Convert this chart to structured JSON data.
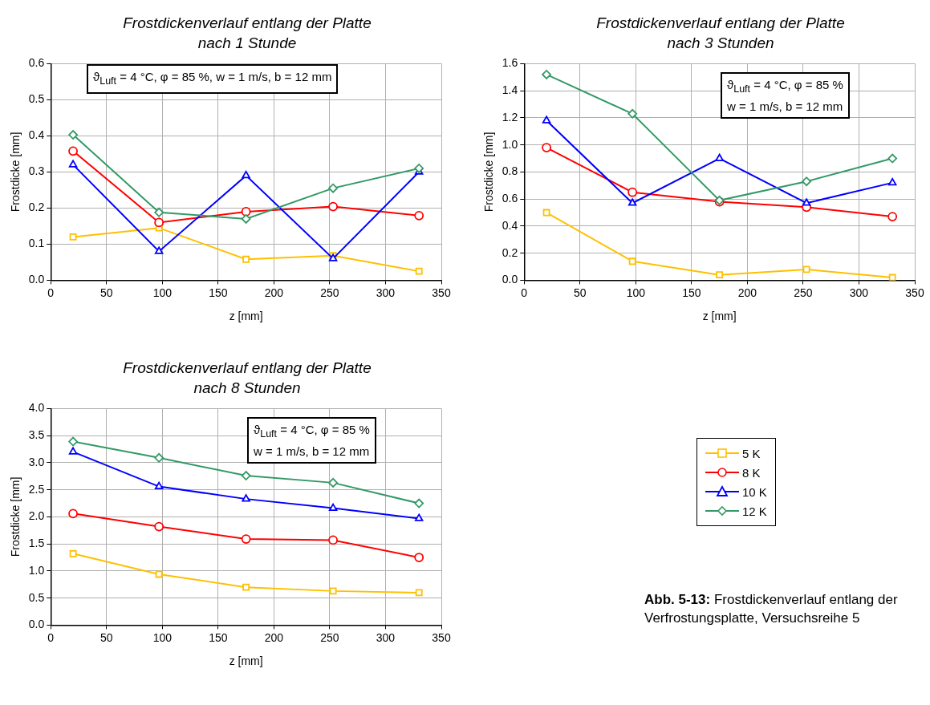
{
  "chart_data": [
    {
      "type": "line",
      "title": "Frostdickenverlauf entlang der Platte nach 1 Stunde",
      "xlabel": "z [mm]",
      "ylabel": "Frostdicke [mm]",
      "x": [
        20,
        97,
        175,
        253,
        330
      ],
      "xlim": [
        0,
        350
      ],
      "xticks": [
        0,
        50,
        100,
        150,
        200,
        250,
        300,
        350
      ],
      "ylim": [
        0,
        0.6
      ],
      "yticks": [
        {
          "value": 0,
          "label": "0.0"
        },
        {
          "value": 0.1,
          "label": "0.1"
        },
        {
          "value": 0.2,
          "label": "0.2"
        },
        {
          "value": 0.3,
          "label": "0.3"
        },
        {
          "value": 0.4,
          "label": "0.4"
        },
        {
          "value": 0.5,
          "label": "0.5"
        },
        {
          "value": 0.6,
          "label": "0.6"
        }
      ],
      "grid": true,
      "legend": false,
      "annotations": [
        "ϑ$_{Luft}$ = 4 °C, φ = 85 %, w = 1 m/s, b = 12 mm"
      ],
      "series": [
        {
          "color": "#ffc000",
          "marker": "square",
          "values": [
            0.12,
            0.145,
            0.058,
            0.068,
            0.025
          ]
        },
        {
          "color": "#ff0000",
          "marker": "circle",
          "values": [
            0.358,
            0.16,
            0.19,
            0.204,
            0.179
          ]
        },
        {
          "color": "#0000ff",
          "marker": "triangle",
          "values": [
            0.32,
            0.08,
            0.29,
            0.06,
            0.3
          ]
        },
        {
          "color": "#339966",
          "marker": "diamond",
          "values": [
            0.403,
            0.188,
            0.17,
            0.255,
            0.31
          ]
        }
      ]
    },
    {
      "type": "line",
      "title": "Frostdickenverlauf entlang der Platte nach 3 Stunden",
      "xlabel": "z [mm]",
      "ylabel": "Frostdicke [mm]",
      "x": [
        20,
        97,
        175,
        253,
        330
      ],
      "xlim": [
        0,
        350
      ],
      "xticks": [
        0,
        50,
        100,
        150,
        200,
        250,
        300,
        350
      ],
      "ylim": [
        0,
        1.6
      ],
      "yticks": [
        {
          "value": 0,
          "label": "0.0"
        },
        {
          "value": 0.2,
          "label": "0.2"
        },
        {
          "value": 0.4,
          "label": "0.4"
        },
        {
          "value": 0.6,
          "label": "0.6"
        },
        {
          "value": 0.8,
          "label": "0.8"
        },
        {
          "value": 1,
          "label": "1.0"
        },
        {
          "value": 1.2,
          "label": "1.2"
        },
        {
          "value": 1.4,
          "label": "1.4"
        },
        {
          "value": 1.6,
          "label": "1.6"
        }
      ],
      "grid": true,
      "legend": false,
      "annotations": [
        "ϑ$_{Luft}$ = 4 °C, φ = 85 %",
        "w = 1 m/s, b = 12 mm"
      ],
      "series": [
        {
          "color": "#ffc000",
          "marker": "square",
          "values": [
            0.5,
            0.14,
            0.04,
            0.08,
            0.02
          ]
        },
        {
          "color": "#ff0000",
          "marker": "circle",
          "values": [
            0.98,
            0.65,
            0.58,
            0.54,
            0.47
          ]
        },
        {
          "color": "#0000ff",
          "marker": "triangle",
          "values": [
            1.18,
            0.57,
            0.9,
            0.57,
            0.72
          ]
        },
        {
          "color": "#339966",
          "marker": "diamond",
          "values": [
            1.52,
            1.23,
            0.59,
            0.73,
            0.9
          ]
        }
      ]
    },
    {
      "type": "line",
      "title": "Frostdickenverlauf entlang der Platte nach 8 Stunden",
      "xlabel": "z [mm]",
      "ylabel": "Frostdicke [mm]",
      "x": [
        20,
        97,
        175,
        253,
        330
      ],
      "xlim": [
        0,
        350
      ],
      "xticks": [
        0,
        50,
        100,
        150,
        200,
        250,
        300,
        350
      ],
      "ylim": [
        0,
        4
      ],
      "yticks": [
        {
          "value": 0,
          "label": "0.0"
        },
        {
          "value": 0.5,
          "label": "0.5"
        },
        {
          "value": 1,
          "label": "1.0"
        },
        {
          "value": 1.5,
          "label": "1.5"
        },
        {
          "value": 2,
          "label": "2.0"
        },
        {
          "value": 2.5,
          "label": "2.5"
        },
        {
          "value": 3,
          "label": "3.0"
        },
        {
          "value": 3.5,
          "label": "3.5"
        },
        {
          "value": 4,
          "label": "4.0"
        }
      ],
      "grid": true,
      "legend": "right",
      "annotations": [
        "ϑ$_{Luft}$ = 4 °C, φ = 85 %",
        "w = 1 m/s, b = 12 mm",
        "Abb. 5-13: Frostdickenverlauf entlang der Verfrostungsplatte,  Versuchsreihe 5"
      ],
      "series": [
        {
          "name": "5 K",
          "color": "#ffc000",
          "marker": "square",
          "values": [
            1.32,
            0.94,
            0.7,
            0.63,
            0.6
          ]
        },
        {
          "name": "8 K",
          "color": "#ff0000",
          "marker": "circle",
          "values": [
            2.06,
            1.82,
            1.59,
            1.57,
            1.25
          ]
        },
        {
          "name": "10 K",
          "color": "#0000ff",
          "marker": "triangle",
          "values": [
            3.2,
            2.56,
            2.33,
            2.16,
            1.97
          ]
        },
        {
          "name": "12 K",
          "color": "#339966",
          "marker": "diamond",
          "values": [
            3.39,
            3.09,
            2.76,
            2.63,
            2.25
          ]
        }
      ]
    }
  ]
}
